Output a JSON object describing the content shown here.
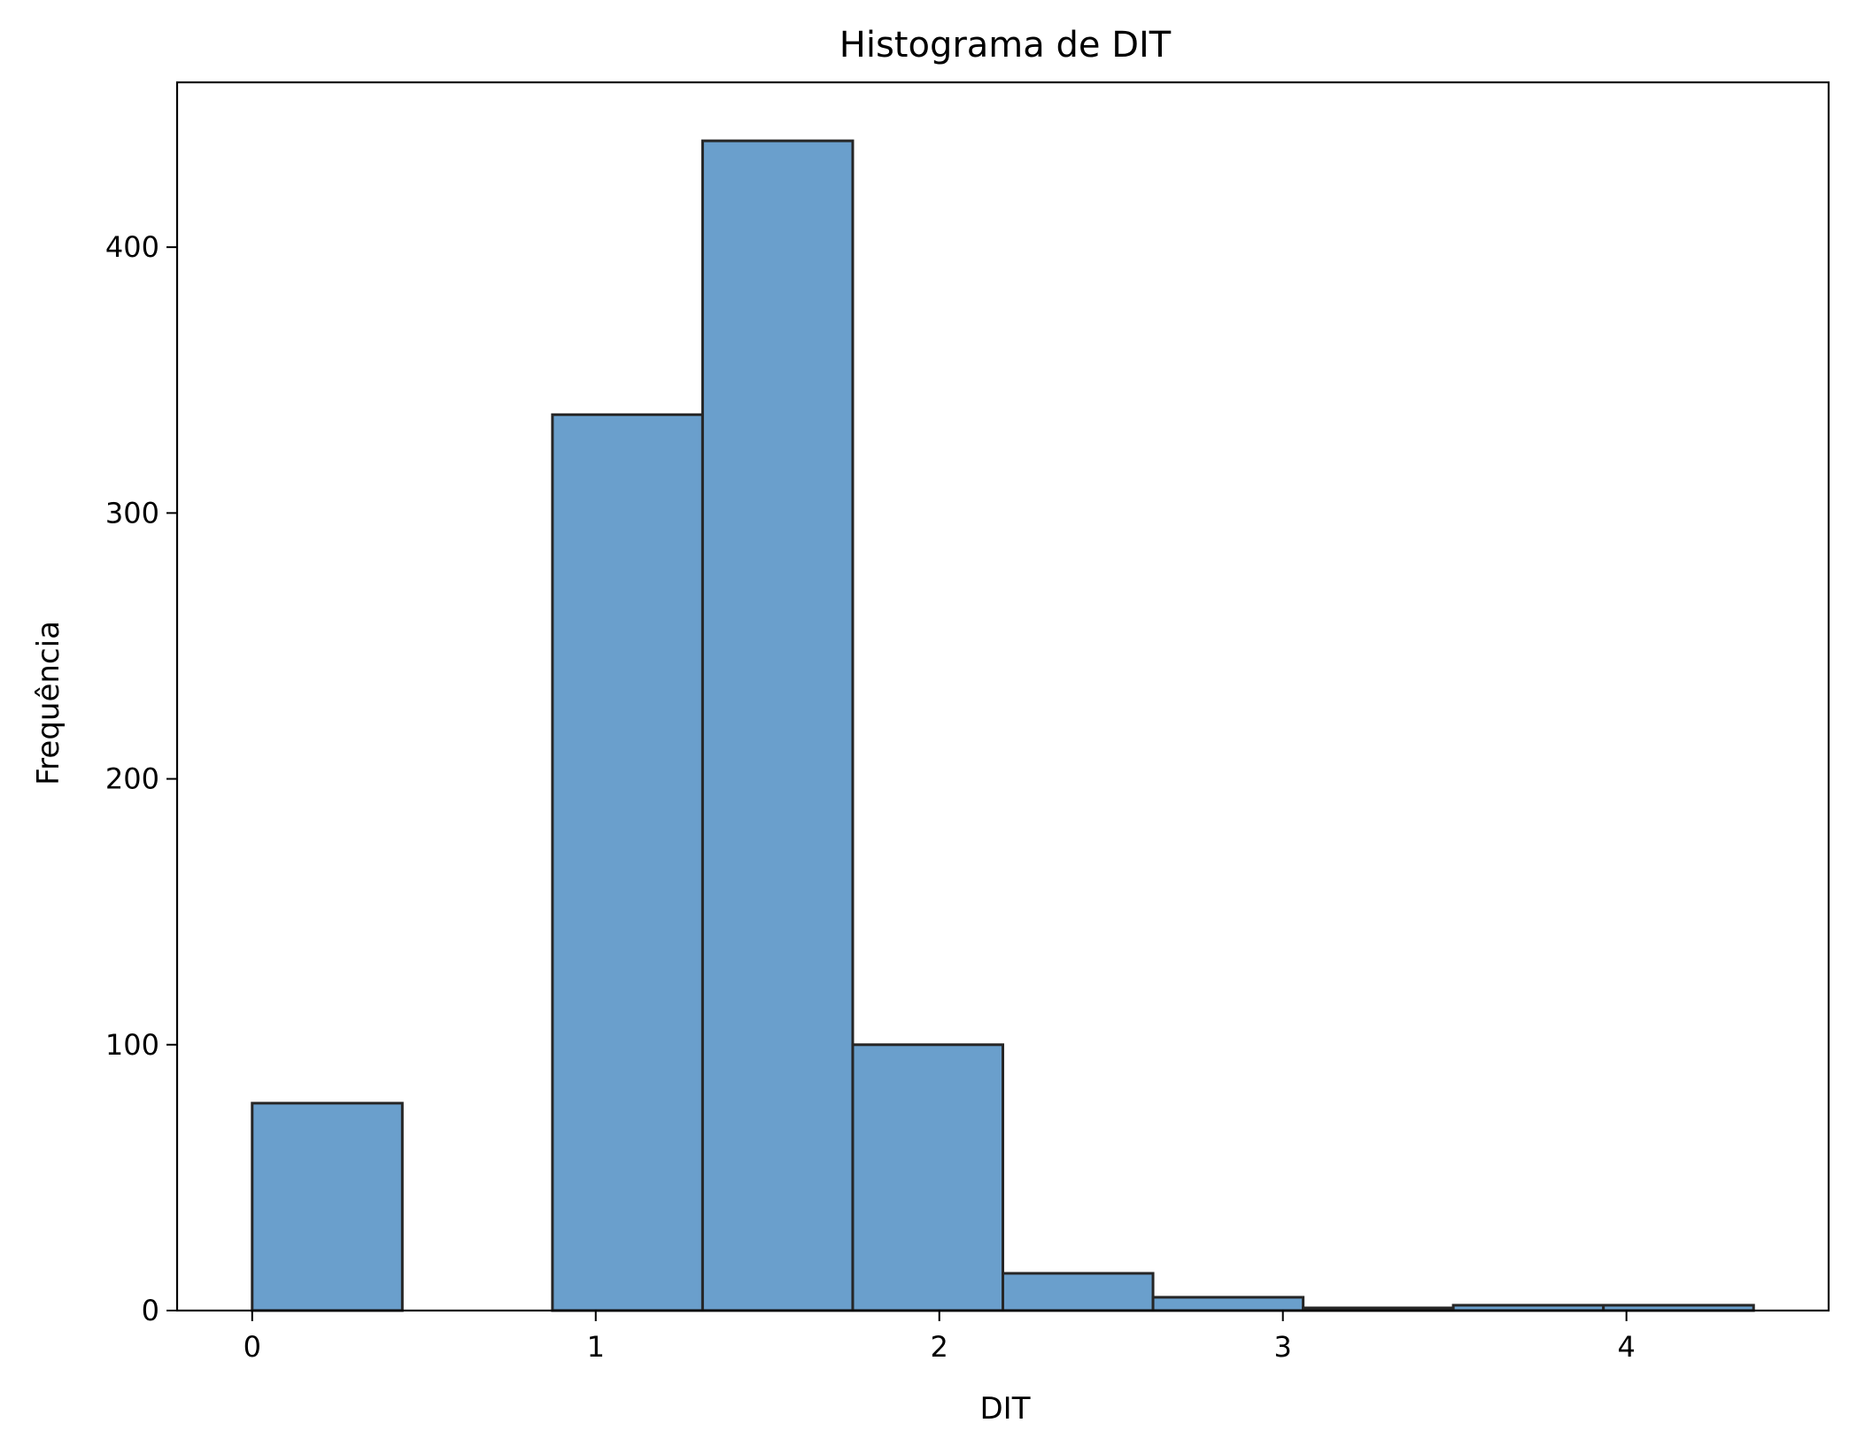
{
  "chart_data": {
    "type": "bar",
    "title": "Histograma de DIT",
    "xlabel": "DIT",
    "ylabel": "Frequência",
    "xlim": [
      -0.2185,
      4.5885
    ],
    "ylim": [
      0,
      462
    ],
    "xticks": [
      0,
      1,
      2,
      3,
      4
    ],
    "xtick_labels": [
      "0",
      "1",
      "2",
      "3",
      "4"
    ],
    "yticks": [
      0,
      100,
      200,
      300,
      400
    ],
    "ytick_labels": [
      "0",
      "100",
      "200",
      "300",
      "400"
    ],
    "bin_edges": [
      0,
      0.437,
      0.874,
      1.311,
      1.748,
      2.185,
      2.622,
      3.059,
      3.496,
      3.933,
      4.37
    ],
    "values": [
      78,
      0,
      337,
      440,
      100,
      14,
      5,
      1,
      2,
      2
    ],
    "grid": false,
    "legend": null,
    "colors": {
      "bar_fill": "#6a9fcc",
      "bar_edge": "#262626",
      "axes": "#000000",
      "background": "#ffffff"
    }
  }
}
